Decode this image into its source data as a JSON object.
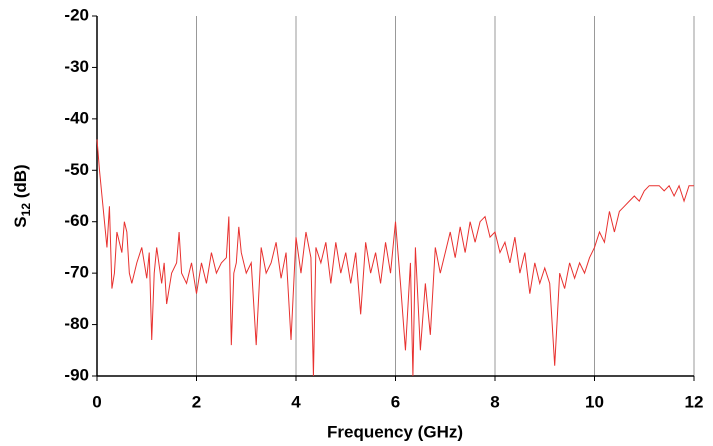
{
  "chart_data": {
    "type": "line",
    "xlabel": "Frequency (GHz)",
    "ylabel": [
      "S",
      "12",
      " (dB)"
    ],
    "xlim": [
      0,
      12
    ],
    "xticks": [
      0,
      2,
      4,
      6,
      8,
      10,
      12
    ],
    "ylim": [
      -90,
      -20
    ],
    "yticks": [
      -90,
      -80,
      -70,
      -60,
      -50,
      -40,
      -30,
      -20
    ],
    "grid_x": true,
    "x": [
      0,
      0.05,
      0.1,
      0.15,
      0.2,
      0.25,
      0.3,
      0.35,
      0.4,
      0.5,
      0.55,
      0.6,
      0.65,
      0.7,
      0.8,
      0.9,
      1.0,
      1.05,
      1.1,
      1.15,
      1.2,
      1.3,
      1.35,
      1.4,
      1.5,
      1.6,
      1.65,
      1.7,
      1.8,
      1.9,
      2.0,
      2.1,
      2.2,
      2.3,
      2.4,
      2.5,
      2.6,
      2.65,
      2.7,
      2.75,
      2.8,
      2.85,
      2.9,
      3.0,
      3.1,
      3.2,
      3.3,
      3.4,
      3.5,
      3.6,
      3.7,
      3.8,
      3.9,
      4.0,
      4.1,
      4.2,
      4.3,
      4.35,
      4.4,
      4.5,
      4.6,
      4.7,
      4.8,
      4.9,
      5.0,
      5.1,
      5.2,
      5.3,
      5.4,
      5.5,
      5.6,
      5.7,
      5.8,
      5.9,
      6.0,
      6.1,
      6.2,
      6.3,
      6.35,
      6.4,
      6.5,
      6.6,
      6.7,
      6.8,
      6.9,
      7.0,
      7.1,
      7.2,
      7.3,
      7.4,
      7.5,
      7.6,
      7.7,
      7.8,
      7.9,
      8.0,
      8.1,
      8.2,
      8.3,
      8.4,
      8.5,
      8.6,
      8.7,
      8.8,
      8.9,
      9.0,
      9.1,
      9.2,
      9.3,
      9.4,
      9.5,
      9.6,
      9.7,
      9.8,
      9.9,
      10.0,
      10.1,
      10.2,
      10.3,
      10.4,
      10.5,
      10.6,
      10.7,
      10.8,
      10.9,
      11.0,
      11.1,
      11.2,
      11.3,
      11.4,
      11.5,
      11.6,
      11.7,
      11.8,
      11.9,
      12.0
    ],
    "series": [
      {
        "color": "#e8312f",
        "values": [
          -44,
          -50,
          -55,
          -60,
          -65,
          -57,
          -73,
          -70,
          -62,
          -66,
          -60,
          -62,
          -70,
          -72,
          -68,
          -65,
          -71,
          -66,
          -83,
          -70,
          -65,
          -72,
          -68,
          -76,
          -70,
          -68,
          -62,
          -70,
          -72,
          -68,
          -74,
          -68,
          -72,
          -66,
          -70,
          -68,
          -67,
          -59,
          -84,
          -70,
          -68,
          -61,
          -66,
          -70,
          -68,
          -84,
          -65,
          -70,
          -68,
          -64,
          -71,
          -66,
          -83,
          -63,
          -70,
          -62,
          -67,
          -90,
          -65,
          -68,
          -64,
          -72,
          -64,
          -70,
          -66,
          -72,
          -66,
          -78,
          -64,
          -70,
          -66,
          -72,
          -64,
          -70,
          -60,
          -72,
          -85,
          -68,
          -90,
          -65,
          -85,
          -72,
          -82,
          -65,
          -70,
          -66,
          -62,
          -67,
          -61,
          -66,
          -60,
          -64,
          -60,
          -59,
          -63,
          -62,
          -66,
          -64,
          -68,
          -63,
          -70,
          -66,
          -74,
          -68,
          -72,
          -69,
          -72,
          -88,
          -70,
          -73,
          -68,
          -71,
          -68,
          -70,
          -67,
          -65,
          -62,
          -64,
          -58,
          -62,
          -58,
          -57,
          -56,
          -55,
          -56,
          -54,
          -53,
          -53,
          -53,
          -54,
          -53,
          -55,
          -53,
          -56,
          -53,
          -53
        ]
      }
    ]
  }
}
